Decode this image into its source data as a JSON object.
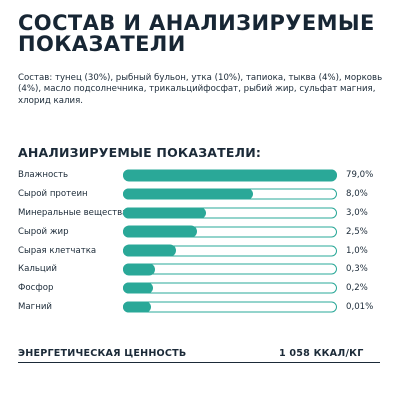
{
  "title": {
    "line1": "СОСТАВ И АНАЛИЗИРУЕМЫЕ",
    "line2": "ПОКАЗАТЕЛИ"
  },
  "composition": "Состав: тунец (30%), рыбный бульон, утка (10%), тапиока, тыква (4%), морковь (4%), масло подсолнечника, трикальцийфосфат, рыбий жир, сульфат магния, хлорид калия.",
  "indicators": {
    "heading": "АНАЛИЗИРУЕМЫЕ ПОКАЗАТЕЛИ:",
    "accent_color": "#2aa898",
    "items": [
      {
        "label": "Влажность",
        "value": "79,0%",
        "fill_fraction": 1.0
      },
      {
        "label": "Сырой протеин",
        "value": "8,0%",
        "fill_fraction": 0.6
      },
      {
        "label": "Минеральные вещества",
        "value": "3,0%",
        "fill_fraction": 0.38
      },
      {
        "label": "Сырой жир",
        "value": "2,5%",
        "fill_fraction": 0.34
      },
      {
        "label": "Сырая клетчатка",
        "value": "1,0%",
        "fill_fraction": 0.24
      },
      {
        "label": "Кальций",
        "value": "0,3%",
        "fill_fraction": 0.14
      },
      {
        "label": "Фосфор",
        "value": "0,2%",
        "fill_fraction": 0.13
      },
      {
        "label": "Магний",
        "value": "0,01%",
        "fill_fraction": 0.1
      }
    ]
  },
  "energy": {
    "label": "ЭНЕРГЕТИЧЕСКАЯ ЦЕННОСТЬ",
    "value": "1 058 ККАЛ/КГ"
  }
}
